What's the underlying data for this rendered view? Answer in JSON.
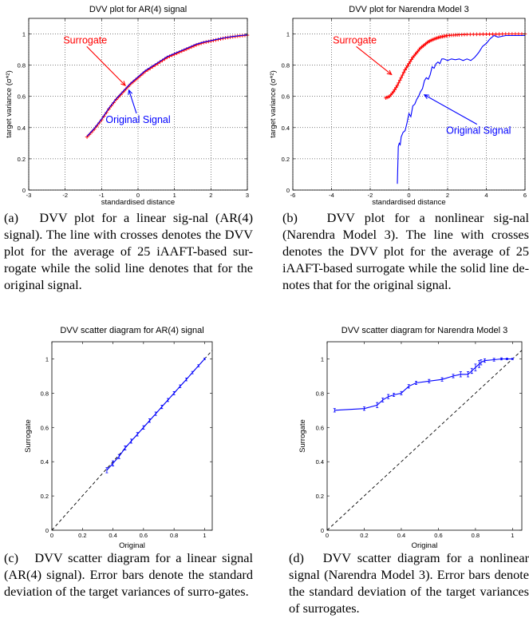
{
  "panels": [
    {
      "caption": "(a)   DVV plot for a linear sig-nal (AR(4) signal). The line with crosses denotes the DVV plot for the average of 25 iAAFT-based sur-rogate while the solid line denotes that for the original signal."
    },
    {
      "caption": "(b)   DVV plot for a nonlinear sig-nal (Narendra Model 3). The line with crosses denotes the DVV plot for the average of 25 iAAFT-based surrogate while the solid line de-notes that for the original signal."
    },
    {
      "caption": "(c)   DVV scatter diagram for a linear signal (AR(4) signal). Error bars denote the standard deviation of the target variances of surro-gates."
    },
    {
      "caption": "(d)   DVV scatter diagram for a nonlinear signal (Narendra Model 3). Error bars denote the standard deviation of the target variances of surrogates."
    }
  ],
  "colors": {
    "surrogate": "#ff0000",
    "original": "#0000ff",
    "diagonal": "#000000"
  },
  "chart_data": [
    {
      "type": "line",
      "title": "DVV plot for AR(4) signal",
      "xlabel": "standardised distance",
      "ylabel": "target variance (σ*²)",
      "xlim": [
        -3,
        3
      ],
      "ylim": [
        0,
        1.1
      ],
      "xticks": [
        -3,
        -2,
        -1,
        0,
        1,
        2,
        3
      ],
      "yticks": [
        0,
        0.2,
        0.4,
        0.6,
        0.8,
        1
      ],
      "grid": true,
      "annotations": [
        {
          "text": "Surrogate",
          "color": "#ff0000",
          "tx": -1.45,
          "ty": 0.94,
          "ax": -0.35,
          "ay": 0.67
        },
        {
          "text": "Original Signal",
          "color": "#0000ff",
          "tx": 0.0,
          "ty": 0.43,
          "ax": -0.25,
          "ay": 0.64
        }
      ],
      "series": [
        {
          "name": "Surrogate",
          "color": "#ff0000",
          "marker": "plus",
          "x": [
            -1.4,
            -1.2,
            -1.0,
            -0.8,
            -0.6,
            -0.4,
            -0.2,
            0.0,
            0.2,
            0.4,
            0.6,
            0.8,
            1.0,
            1.2,
            1.4,
            1.6,
            1.8,
            2.0,
            2.2,
            2.4,
            2.6,
            2.8,
            3.0
          ],
          "y": [
            0.34,
            0.39,
            0.45,
            0.52,
            0.58,
            0.63,
            0.68,
            0.72,
            0.76,
            0.79,
            0.82,
            0.85,
            0.87,
            0.89,
            0.91,
            0.93,
            0.945,
            0.955,
            0.965,
            0.975,
            0.982,
            0.988,
            0.992
          ]
        },
        {
          "name": "Original Signal",
          "color": "#0000ff",
          "marker": "none",
          "x": [
            -1.4,
            -1.2,
            -1.0,
            -0.8,
            -0.6,
            -0.4,
            -0.2,
            0.0,
            0.2,
            0.4,
            0.6,
            0.8,
            1.0,
            1.2,
            1.4,
            1.6,
            1.8,
            2.0,
            2.2,
            2.4,
            2.6,
            2.8,
            3.0
          ],
          "y": [
            0.345,
            0.395,
            0.455,
            0.525,
            0.585,
            0.635,
            0.685,
            0.725,
            0.765,
            0.795,
            0.825,
            0.855,
            0.875,
            0.895,
            0.915,
            0.935,
            0.948,
            0.958,
            0.968,
            0.977,
            0.984,
            0.99,
            0.994
          ]
        }
      ]
    },
    {
      "type": "line",
      "title": "DVV plot for Narendra Model 3",
      "xlabel": "standardised distance",
      "ylabel": "target variance (σ*²)",
      "xlim": [
        -6,
        6
      ],
      "ylim": [
        0,
        1.1
      ],
      "xticks": [
        -6,
        -4,
        -2,
        0,
        2,
        4,
        6
      ],
      "yticks": [
        0,
        0.2,
        0.4,
        0.6,
        0.8,
        1
      ],
      "grid": true,
      "annotations": [
        {
          "text": "Surrogate",
          "color": "#ff0000",
          "tx": -2.8,
          "ty": 0.94,
          "ax": -0.9,
          "ay": 0.74
        },
        {
          "text": "Original Signal",
          "color": "#0000ff",
          "tx": 3.6,
          "ty": 0.36,
          "ax": 0.8,
          "ay": 0.61
        }
      ],
      "series": [
        {
          "name": "Surrogate",
          "color": "#ff0000",
          "marker": "plus",
          "x": [
            -1.2,
            -1.0,
            -0.8,
            -0.6,
            -0.4,
            -0.2,
            0.0,
            0.2,
            0.4,
            0.6,
            0.8,
            1.0,
            1.2,
            1.4,
            1.6,
            1.8,
            2.0,
            2.3,
            2.6,
            3.0,
            3.5,
            4.0,
            4.5,
            5.0,
            5.5,
            6.0
          ],
          "y": [
            0.59,
            0.6,
            0.63,
            0.67,
            0.72,
            0.77,
            0.81,
            0.85,
            0.88,
            0.91,
            0.93,
            0.95,
            0.962,
            0.972,
            0.98,
            0.985,
            0.99,
            0.993,
            0.995,
            0.997,
            0.998,
            0.999,
            0.999,
            1.0,
            1.0,
            1.0
          ]
        },
        {
          "name": "Original Signal",
          "color": "#0000ff",
          "marker": "none",
          "x": [
            -0.6,
            -0.55,
            -0.5,
            -0.45,
            -0.4,
            -0.3,
            -0.2,
            -0.1,
            0.0,
            0.1,
            0.2,
            0.3,
            0.4,
            0.5,
            0.6,
            0.7,
            0.8,
            0.9,
            1.0,
            1.1,
            1.2,
            1.3,
            1.4,
            1.5,
            1.6,
            1.7,
            1.8,
            2.0,
            2.2,
            2.4,
            2.6,
            2.8,
            3.0,
            3.2,
            3.4,
            3.6,
            3.8,
            4.0,
            4.2,
            4.4,
            4.6,
            4.8,
            5.0,
            5.5,
            6.0
          ],
          "y": [
            0.04,
            0.28,
            0.3,
            0.29,
            0.34,
            0.37,
            0.38,
            0.43,
            0.49,
            0.47,
            0.54,
            0.55,
            0.58,
            0.6,
            0.63,
            0.65,
            0.7,
            0.72,
            0.71,
            0.74,
            0.79,
            0.78,
            0.81,
            0.82,
            0.81,
            0.84,
            0.84,
            0.83,
            0.84,
            0.835,
            0.84,
            0.83,
            0.84,
            0.83,
            0.85,
            0.88,
            0.92,
            0.94,
            0.97,
            0.99,
            0.98,
            0.985,
            0.99,
            0.99,
            0.99
          ]
        }
      ]
    },
    {
      "type": "scatter",
      "title": "DVV scatter diagram for AR(4) signal",
      "xlabel": "Original",
      "ylabel": "Surrogate",
      "xlim": [
        0,
        1.05
      ],
      "ylim": [
        0,
        1.1
      ],
      "xticks": [
        0,
        0.2,
        0.4,
        0.6,
        0.8,
        1
      ],
      "yticks": [
        0,
        0.2,
        0.4,
        0.6,
        0.8,
        1
      ],
      "grid": false,
      "diagonal": true,
      "series": [
        {
          "name": "",
          "color": "#0000ff",
          "errorbars": true,
          "x": [
            0.36,
            0.4,
            0.44,
            0.48,
            0.52,
            0.56,
            0.6,
            0.64,
            0.68,
            0.72,
            0.76,
            0.8,
            0.84,
            0.88,
            0.92,
            0.96,
            1.0
          ],
          "y": [
            0.35,
            0.39,
            0.43,
            0.48,
            0.52,
            0.56,
            0.6,
            0.64,
            0.68,
            0.72,
            0.76,
            0.8,
            0.84,
            0.88,
            0.92,
            0.96,
            1.0
          ],
          "err": [
            0.015,
            0.015,
            0.012,
            0.012,
            0.012,
            0.01,
            0.01,
            0.01,
            0.01,
            0.01,
            0.009,
            0.009,
            0.008,
            0.008,
            0.007,
            0.006,
            0.005
          ]
        }
      ]
    },
    {
      "type": "scatter",
      "title": "DVV scatter diagram for Narendra Model 3",
      "xlabel": "Original",
      "ylabel": "Surrogate",
      "xlim": [
        0,
        1.05
      ],
      "ylim": [
        0,
        1.1
      ],
      "xticks": [
        0,
        0.2,
        0.4,
        0.6,
        0.8,
        1
      ],
      "yticks": [
        0,
        0.2,
        0.4,
        0.6,
        0.8,
        1
      ],
      "grid": false,
      "diagonal": true,
      "series": [
        {
          "name": "",
          "color": "#0000ff",
          "errorbars": true,
          "x": [
            0.04,
            0.2,
            0.27,
            0.3,
            0.33,
            0.36,
            0.4,
            0.44,
            0.48,
            0.55,
            0.62,
            0.68,
            0.72,
            0.76,
            0.78,
            0.8,
            0.82,
            0.83,
            0.85,
            0.9,
            0.94,
            0.97,
            1.0
          ],
          "y": [
            0.7,
            0.71,
            0.73,
            0.76,
            0.78,
            0.79,
            0.8,
            0.84,
            0.86,
            0.87,
            0.88,
            0.9,
            0.91,
            0.91,
            0.93,
            0.95,
            0.97,
            0.98,
            0.99,
            0.995,
            1.0,
            1.0,
            1.0
          ],
          "err": [
            0.01,
            0.01,
            0.015,
            0.012,
            0.012,
            0.01,
            0.01,
            0.01,
            0.01,
            0.01,
            0.01,
            0.01,
            0.015,
            0.015,
            0.015,
            0.02,
            0.02,
            0.015,
            0.01,
            0.008,
            0.006,
            0.005,
            0.004
          ]
        }
      ]
    }
  ]
}
